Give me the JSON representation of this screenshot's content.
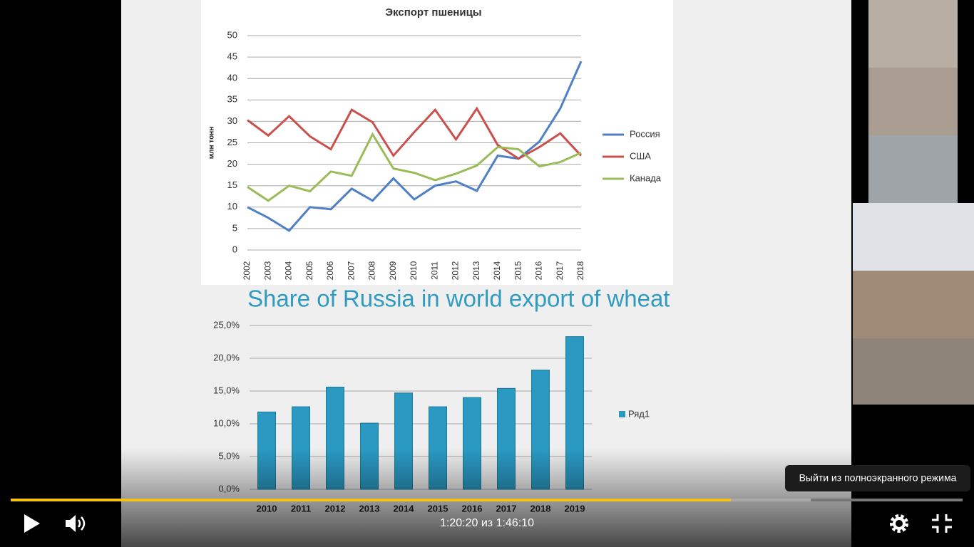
{
  "chart_data": [
    {
      "type": "line",
      "title": "Экспорт пшеницы",
      "y_label": "млн тонн",
      "categories": [
        "2002",
        "2003",
        "2004",
        "2005",
        "2006",
        "2007",
        "2008",
        "2009",
        "2010",
        "2011",
        "2012",
        "2013",
        "2014",
        "2015",
        "2016",
        "2017",
        "2018"
      ],
      "series": [
        {
          "name": "Россия",
          "color": "#4f7fc4",
          "values": [
            10,
            7.5,
            4.5,
            10,
            9.5,
            14.3,
            11.5,
            16.7,
            11.8,
            15,
            16,
            13.8,
            22,
            21.3,
            25.3,
            33,
            44
          ]
        },
        {
          "name": "США",
          "color": "#c9504c",
          "values": [
            30.3,
            26.7,
            31.2,
            26.5,
            23.5,
            32.7,
            29.8,
            22,
            27.5,
            32.7,
            25.8,
            33,
            24.5,
            21.3,
            24,
            27.2,
            22
          ]
        },
        {
          "name": "Канада",
          "color": "#9bbb59",
          "values": [
            14.7,
            11.5,
            15,
            13.7,
            18.3,
            17.3,
            27,
            19,
            18,
            16.3,
            17.8,
            19.7,
            24,
            23.5,
            19.5,
            20.5,
            22.7
          ]
        }
      ],
      "ylim": [
        0,
        50
      ],
      "yticks": [
        0,
        5,
        10,
        15,
        20,
        25,
        30,
        35,
        40,
        45,
        50
      ],
      "grid": true,
      "legend": "right"
    },
    {
      "type": "bar",
      "title": "Share of Russia in world export of wheat",
      "categories": [
        "2010",
        "2011",
        "2012",
        "2013",
        "2014",
        "2015",
        "2016",
        "2017",
        "2018",
        "2019"
      ],
      "series": [
        {
          "name": "Ряд1",
          "color": "#2a9ac3",
          "values": [
            11.8,
            12.6,
            15.6,
            10.1,
            14.7,
            12.6,
            14,
            15.4,
            18.2,
            23.3
          ]
        }
      ],
      "ylim": [
        0,
        25
      ],
      "yticks": [
        {
          "value": 0,
          "label": "0,0%"
        },
        {
          "value": 5,
          "label": "5,0%"
        },
        {
          "value": 10,
          "label": "10,0%"
        },
        {
          "value": 15,
          "label": "15,0%"
        },
        {
          "value": 20,
          "label": "20,0%"
        },
        {
          "value": 25,
          "label": "25,0%"
        }
      ],
      "grid": true,
      "legend": "right"
    }
  ],
  "player": {
    "time": "1:20:20 из 1:46:10",
    "tooltip": "Выйти из полноэкранного режима"
  }
}
